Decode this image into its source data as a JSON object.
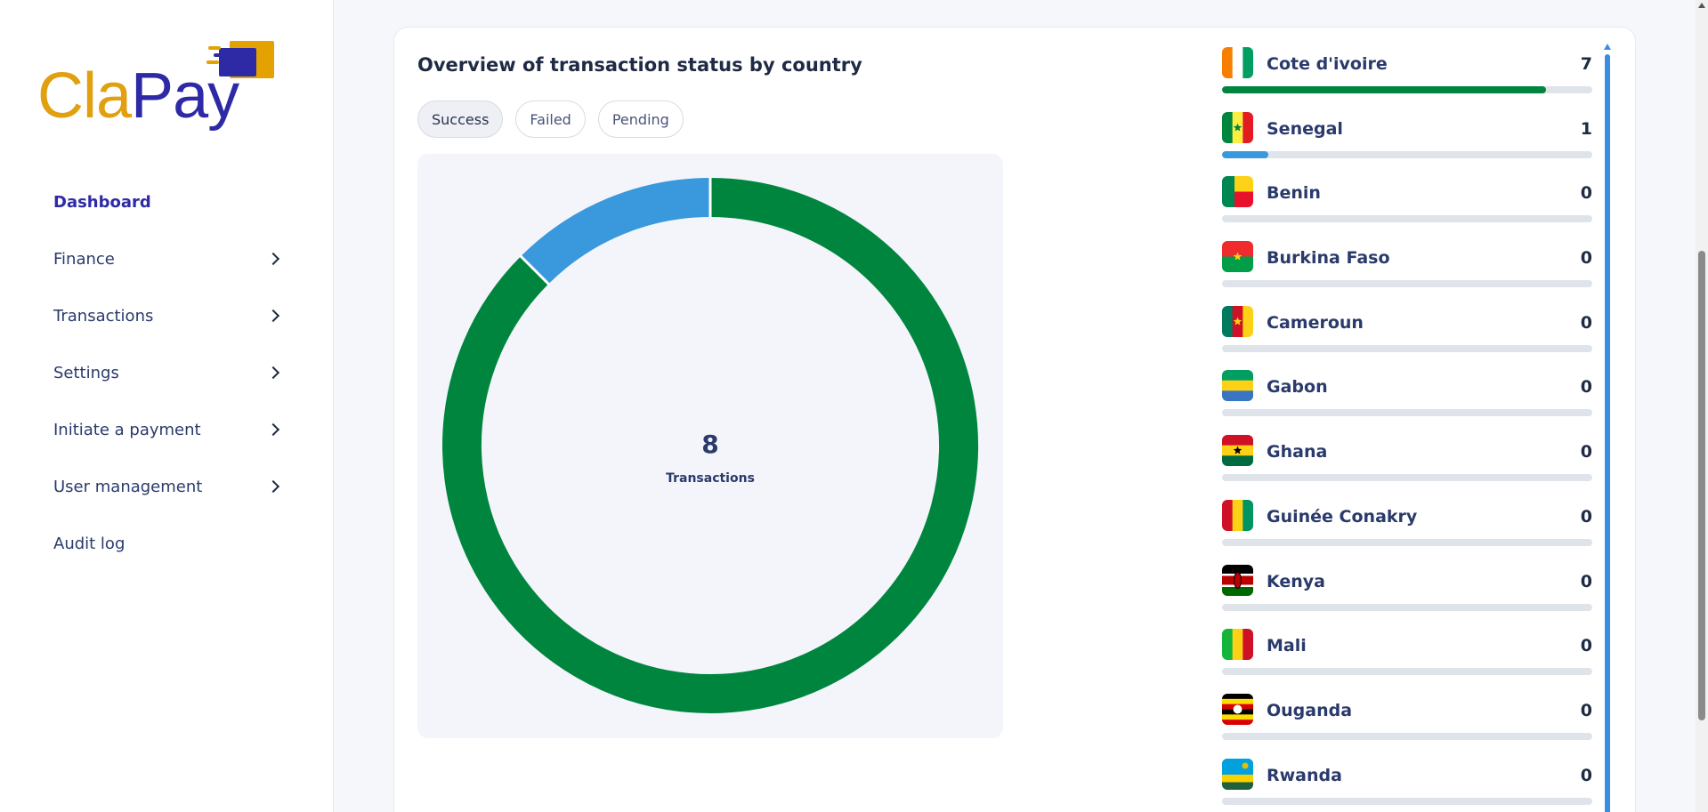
{
  "brand": {
    "part1": "Cla",
    "part2": "Pay"
  },
  "sidebar": {
    "items": [
      {
        "label": "Dashboard",
        "active": true,
        "has_chevron": false
      },
      {
        "label": "Finance",
        "has_chevron": true
      },
      {
        "label": "Transactions",
        "has_chevron": true
      },
      {
        "label": "Settings",
        "has_chevron": true
      },
      {
        "label": "Initiate a payment",
        "has_chevron": true
      },
      {
        "label": "User management",
        "has_chevron": true
      },
      {
        "label": "Audit log",
        "has_chevron": false
      }
    ]
  },
  "card": {
    "title": "Overview of transaction status by country",
    "filters": [
      "Success",
      "Failed",
      "Pending"
    ],
    "active_filter": "Success"
  },
  "chart_data": {
    "type": "pie",
    "variant": "donut",
    "categories": [
      "Cote d'ivoire",
      "Senegal"
    ],
    "values": [
      7,
      1
    ],
    "colors": [
      "#00853f",
      "#3a98dc"
    ],
    "total": "8",
    "total_label": "Transactions"
  },
  "countries": [
    {
      "name": "Cote d'ivoire",
      "count": "7",
      "fill": 0.875,
      "color": "#00853f",
      "flag": "cote-divoire-flag-icon"
    },
    {
      "name": "Senegal",
      "count": "1",
      "fill": 0.125,
      "color": "#3a98dc",
      "flag": "senegal-flag-icon"
    },
    {
      "name": "Benin",
      "count": "0",
      "fill": 0,
      "color": "#3a98dc",
      "flag": "benin-flag-icon"
    },
    {
      "name": "Burkina Faso",
      "count": "0",
      "fill": 0,
      "color": "#3a98dc",
      "flag": "burkina-faso-flag-icon"
    },
    {
      "name": "Cameroun",
      "count": "0",
      "fill": 0,
      "color": "#3a98dc",
      "flag": "cameroun-flag-icon"
    },
    {
      "name": "Gabon",
      "count": "0",
      "fill": 0,
      "color": "#3a98dc",
      "flag": "gabon-flag-icon"
    },
    {
      "name": "Ghana",
      "count": "0",
      "fill": 0,
      "color": "#3a98dc",
      "flag": "ghana-flag-icon"
    },
    {
      "name": "Guinée Conakry",
      "count": "0",
      "fill": 0,
      "color": "#3a98dc",
      "flag": "guinee-conakry-flag-icon"
    },
    {
      "name": "Kenya",
      "count": "0",
      "fill": 0,
      "color": "#3a98dc",
      "flag": "kenya-flag-icon"
    },
    {
      "name": "Mali",
      "count": "0",
      "fill": 0,
      "color": "#3a98dc",
      "flag": "mali-flag-icon"
    },
    {
      "name": "Ouganda",
      "count": "0",
      "fill": 0,
      "color": "#3a98dc",
      "flag": "ouganda-flag-icon"
    },
    {
      "name": "Rwanda",
      "count": "0",
      "fill": 0,
      "color": "#3a98dc",
      "flag": "rwanda-flag-icon"
    }
  ]
}
